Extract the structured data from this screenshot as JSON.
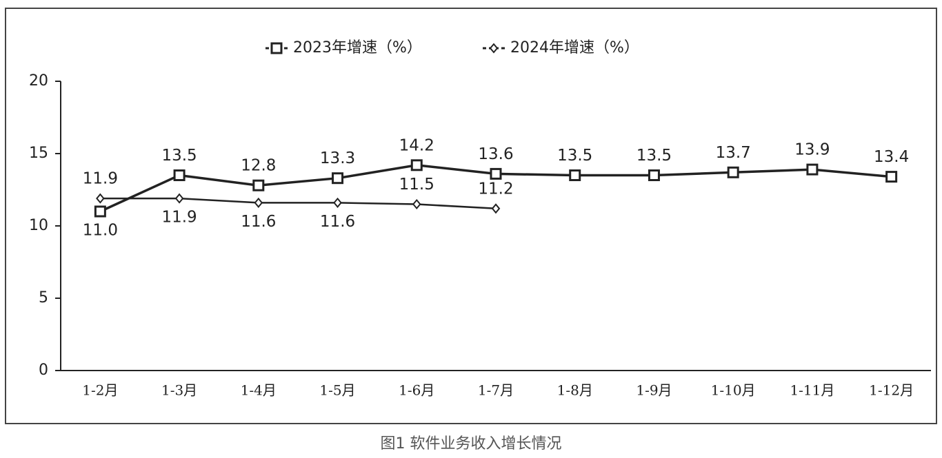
{
  "chart_data": {
    "type": "line",
    "caption": "图1  软件业务收入增长情况",
    "categories": [
      "1-2月",
      "1-3月",
      "1-4月",
      "1-5月",
      "1-6月",
      "1-7月",
      "1-8月",
      "1-9月",
      "1-10月",
      "1-11月",
      "1-12月"
    ],
    "series": [
      {
        "name": "2023年增速（%）",
        "color": "#222222",
        "marker": "square",
        "values": [
          11.0,
          13.5,
          12.8,
          13.3,
          14.2,
          13.6,
          13.5,
          13.5,
          13.7,
          13.9,
          13.4
        ],
        "value_labels": [
          "11.0",
          "13.5",
          "12.8",
          "13.3",
          "14.2",
          "13.6",
          "13.5",
          "13.5",
          "13.7",
          "13.9",
          "13.4"
        ]
      },
      {
        "name": "2024年增速（%）",
        "color": "#222222",
        "marker": "diamond",
        "values": [
          11.9,
          11.9,
          11.6,
          11.6,
          11.5,
          11.2,
          null,
          null,
          null,
          null,
          null
        ]
      }
    ],
    "ylim": [
      0,
      20
    ],
    "yticks": [
      0,
      5,
      10,
      15,
      20
    ],
    "grid": false,
    "legend": "top"
  }
}
